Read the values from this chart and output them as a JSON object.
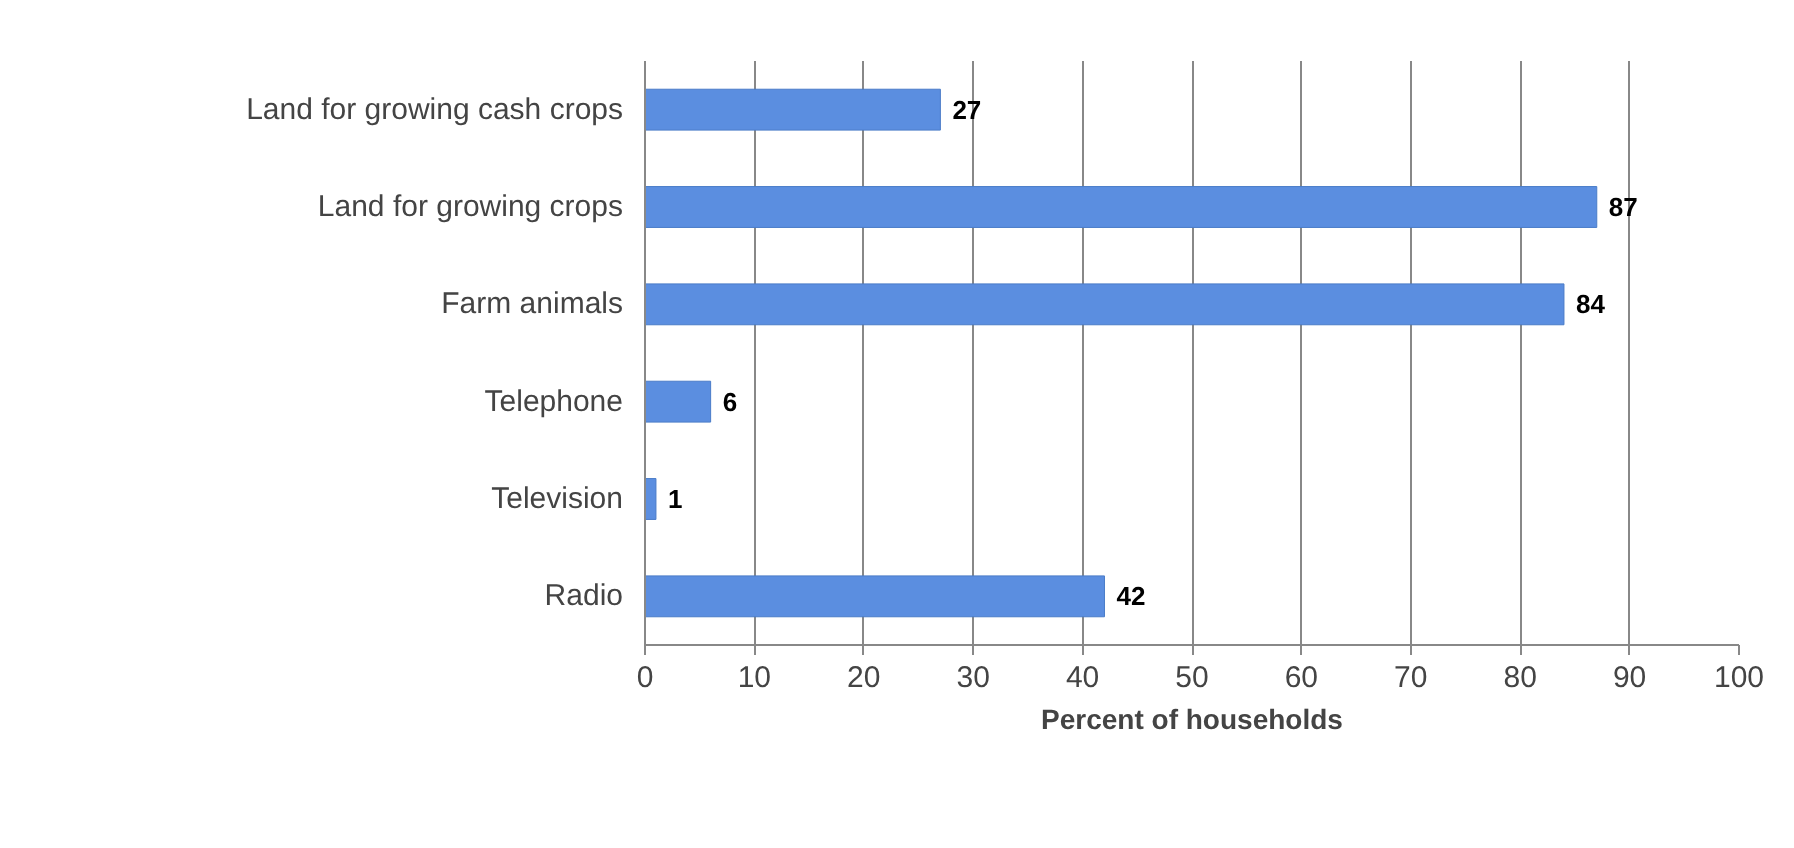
{
  "chart_data": {
    "type": "bar",
    "orientation": "horizontal",
    "xlabel": "Percent of households",
    "categories": [
      "Land for growing cash crops",
      "Land for growing crops",
      "Farm animals",
      "Telephone",
      "Television",
      "Radio"
    ],
    "values": [
      27,
      87,
      84,
      6,
      1,
      42
    ],
    "color": "#5b8ee0",
    "xlim": [
      0,
      100
    ],
    "xticks": [
      0,
      10,
      20,
      30,
      40,
      50,
      60,
      70,
      80,
      90,
      100
    ],
    "grid": "x",
    "data_labels": true
  }
}
